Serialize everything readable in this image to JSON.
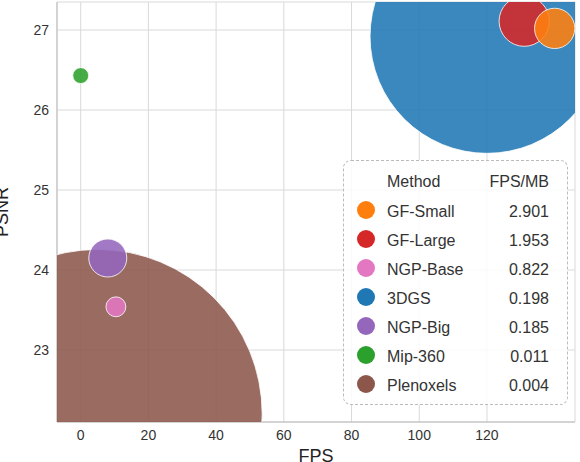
{
  "chart_data": {
    "type": "bubble",
    "x_label": "FPS",
    "y_label": "PSNR",
    "xlim": [
      -7,
      146
    ],
    "ylim": [
      22.1,
      27.35
    ],
    "xticks": [
      0,
      20,
      40,
      60,
      80,
      100,
      120
    ],
    "yticks": [
      23,
      24,
      25,
      26,
      27
    ],
    "grid": true,
    "legend": "lower right",
    "legend_columns": [
      "Method",
      "FPS/MB"
    ],
    "series": [
      {
        "name": "GF-Small",
        "color": "#ff7f0e",
        "x": [
          140
        ],
        "values": [
          27.02
        ],
        "sizes": [
          18
        ],
        "fps_per_mb": 2.901
      },
      {
        "name": "GF-Large",
        "color": "#d62728",
        "x": [
          131
        ],
        "values": [
          27.11
        ],
        "sizes": [
          28
        ],
        "fps_per_mb": 1.953
      },
      {
        "name": "NGP-Base",
        "color": "#e377c2",
        "x": [
          10.4
        ],
        "values": [
          23.54
        ],
        "sizes": [
          4.4
        ],
        "fps_per_mb": 0.822
      },
      {
        "name": "3DGS",
        "color": "#1f77b4",
        "x": [
          120
        ],
        "values": [
          26.92
        ],
        "sizes": [
          606
        ],
        "fps_per_mb": 0.198
      },
      {
        "name": "NGP-Big",
        "color": "#9467bd",
        "x": [
          8
        ],
        "values": [
          24.15
        ],
        "sizes": [
          16
        ],
        "fps_per_mb": 0.185
      },
      {
        "name": "Mip-360",
        "color": "#2ca02c",
        "x": [
          0
        ],
        "values": [
          26.43
        ],
        "sizes": [
          2.8
        ],
        "fps_per_mb": 0.011
      },
      {
        "name": "Plenoxels",
        "color": "#8c564b",
        "x": [
          5
        ],
        "values": [
          22.2
        ],
        "sizes": [
          1200
        ],
        "fps_per_mb": 0.004
      }
    ]
  }
}
